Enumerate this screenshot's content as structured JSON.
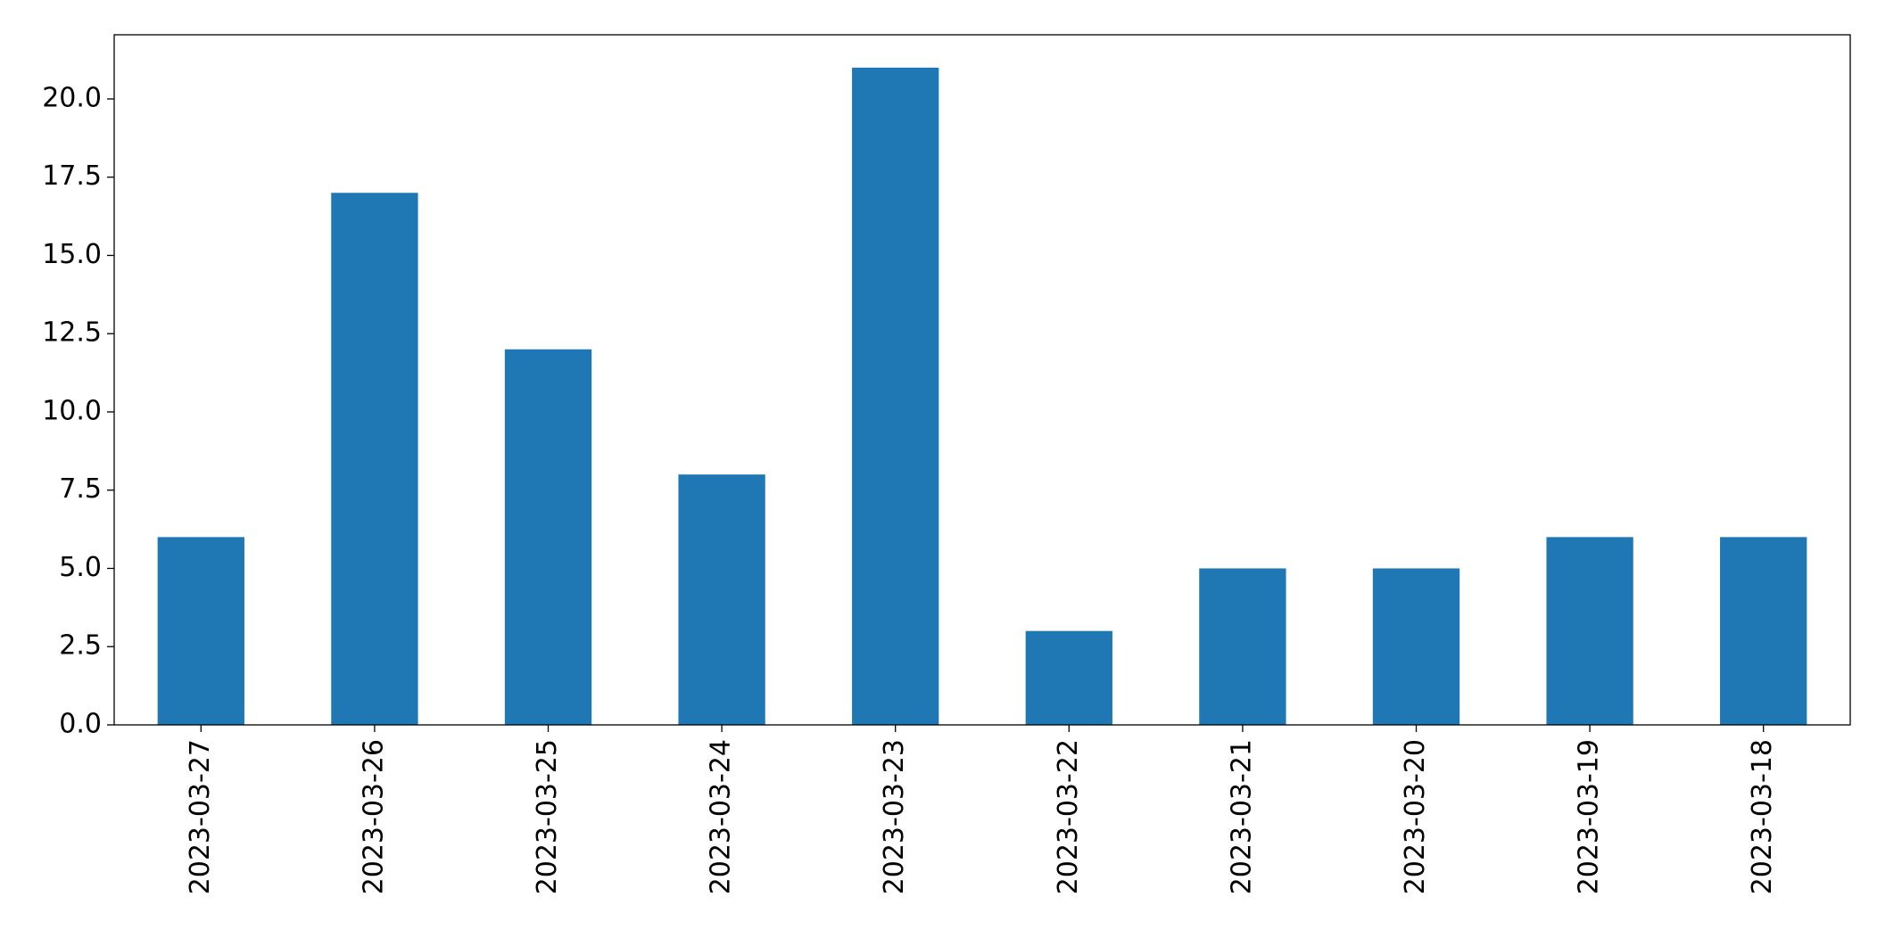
{
  "chart_data": {
    "type": "bar",
    "categories": [
      "2023-03-27",
      "2023-03-26",
      "2023-03-25",
      "2023-03-24",
      "2023-03-23",
      "2023-03-22",
      "2023-03-21",
      "2023-03-20",
      "2023-03-19",
      "2023-03-18"
    ],
    "values": [
      6,
      17,
      12,
      8,
      21,
      3,
      5,
      5,
      6,
      6
    ],
    "color": "#1f77b4",
    "ylim": [
      0,
      22.05
    ],
    "yticks": [
      {
        "value": 0,
        "label": "0.0"
      },
      2.5,
      {
        "value": 5,
        "label": "5.0"
      },
      7.5,
      {
        "value": 10,
        "label": "10.0"
      },
      12.5,
      {
        "value": 15,
        "label": "15.0"
      },
      17.5,
      {
        "value": 20,
        "label": "20.0"
      }
    ],
    "grid": false
  }
}
